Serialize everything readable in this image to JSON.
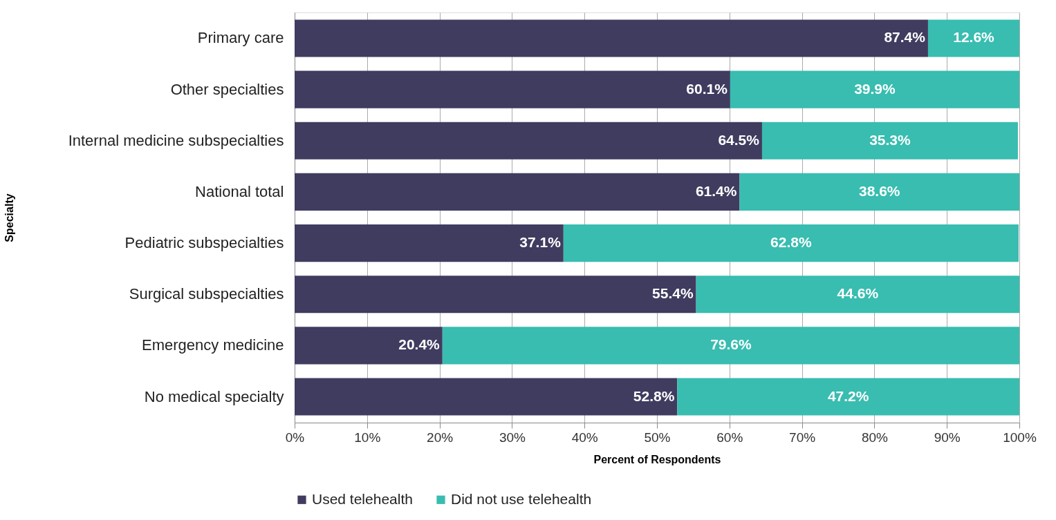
{
  "chart_data": {
    "type": "bar",
    "orientation": "horizontal",
    "stacked": true,
    "xlabel": "Percent of Respondents",
    "ylabel": "Specialty",
    "categories": [
      "Primary care",
      "Other specialties",
      "Internal medicine subspecialties",
      "National total",
      "Pediatric subspecialties",
      "Surgical subspecialties",
      "Emergency medicine",
      "No medical specialty"
    ],
    "series": [
      {
        "name": "Used telehealth",
        "color": "#403c60",
        "values": [
          87.4,
          60.1,
          64.5,
          61.4,
          37.1,
          55.4,
          20.4,
          52.8
        ],
        "value_labels": [
          "87.4%",
          "60.1%",
          "64.5%",
          "61.4%",
          "37.1%",
          "55.4%",
          "20.4%",
          "52.8%"
        ]
      },
      {
        "name": "Did not use telehealth",
        "color": "#38bdb0",
        "values": [
          12.6,
          39.9,
          35.3,
          38.6,
          62.8,
          44.6,
          79.6,
          47.2
        ],
        "value_labels": [
          "12.6%",
          "39.9%",
          "35.3%",
          "38.6%",
          "62.8%",
          "44.6%",
          "79.6%",
          "47.2%"
        ]
      }
    ],
    "xlim": [
      0,
      100
    ],
    "xticks": [
      {
        "value": 0,
        "label": "0%"
      },
      {
        "value": 10,
        "label": "10%"
      },
      {
        "value": 20,
        "label": "20%"
      },
      {
        "value": 30,
        "label": "30%"
      },
      {
        "value": 40,
        "label": "40%"
      },
      {
        "value": 50,
        "label": "50%"
      },
      {
        "value": 60,
        "label": "60%"
      },
      {
        "value": 70,
        "label": "70%"
      },
      {
        "value": 80,
        "label": "80%"
      },
      {
        "value": 90,
        "label": "90%"
      },
      {
        "value": 100,
        "label": "100%"
      }
    ],
    "grid": "x",
    "legend": "bottom"
  }
}
